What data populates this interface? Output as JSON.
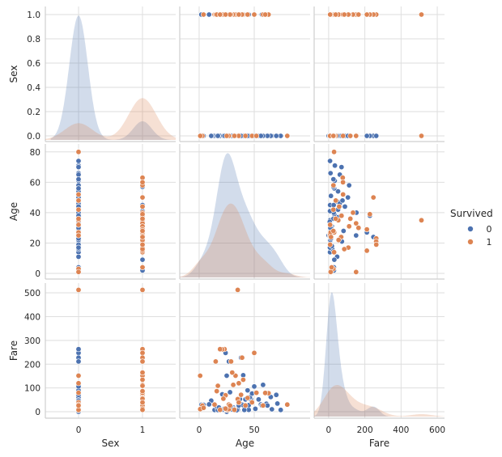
{
  "chart_data": {
    "type": "scatter",
    "subtype": "pairplot",
    "variables": [
      "Sex",
      "Age",
      "Fare"
    ],
    "hue": "Survived",
    "legend": {
      "title": "Survived",
      "entries": [
        "0",
        "1"
      ],
      "placement": "right"
    },
    "colors": {
      "0": "#4c72b0",
      "1": "#dd8452"
    },
    "grid": true,
    "diagonal": "kde",
    "axes": [
      {
        "name": "Sex",
        "lim": [
          -0.52,
          1.52
        ],
        "ylim": [
          -0.047,
          1.067
        ],
        "xticks": [
          "0",
          "1"
        ],
        "xtick_values": [
          0,
          1
        ],
        "yticks": [
          "0.0",
          "0.2",
          "0.4",
          "0.6",
          "0.8",
          "1.0"
        ],
        "ytick_values": [
          0,
          0.2,
          0.4,
          0.6,
          0.8,
          1.0
        ]
      },
      {
        "name": "Age",
        "lim": [
          -17.6,
          100.7
        ],
        "ylim": [
          -3.7,
          85.2
        ],
        "xticks": [
          "0",
          "50"
        ],
        "xtick_values": [
          0,
          50
        ],
        "yticks": [
          "0",
          "20",
          "40",
          "60",
          "80"
        ],
        "ytick_values": [
          0,
          20,
          40,
          60,
          80
        ]
      },
      {
        "name": "Fare",
        "lim": [
          -80,
          640
        ],
        "ylim": [
          -27,
          541
        ],
        "xticks": [
          "0",
          "200",
          "400",
          "600"
        ],
        "xtick_values": [
          0,
          200,
          400,
          600
        ],
        "yticks": [
          "0",
          "100",
          "200",
          "300",
          "400",
          "500"
        ],
        "ytick_values": [
          0,
          100,
          200,
          300,
          400,
          500
        ]
      }
    ],
    "columns": [
      "Sex",
      "Age",
      "Fare",
      "Survived"
    ],
    "points": [
      [
        0,
        22,
        7.25,
        0
      ],
      [
        0,
        35,
        8.05,
        0
      ],
      [
        0,
        54,
        51.86,
        0
      ],
      [
        0,
        2,
        21.08,
        0
      ],
      [
        0,
        20,
        8.05,
        0
      ],
      [
        0,
        39,
        31.28,
        0
      ],
      [
        0,
        14,
        7.85,
        0
      ],
      [
        0,
        28,
        13,
        0
      ],
      [
        0,
        31,
        18,
        0
      ],
      [
        0,
        19,
        263,
        0
      ],
      [
        0,
        40,
        27.72,
        0
      ],
      [
        0,
        66,
        10.5,
        0
      ],
      [
        0,
        28,
        82.17,
        0
      ],
      [
        0,
        42,
        52,
        0
      ],
      [
        0,
        21,
        8.05,
        0
      ],
      [
        0,
        18,
        11.5,
        0
      ],
      [
        0,
        45,
        8.05,
        0
      ],
      [
        0,
        25,
        0,
        0
      ],
      [
        0,
        65,
        61.98,
        0
      ],
      [
        0,
        28,
        7.9,
        0
      ],
      [
        0,
        24,
        247.52,
        0
      ],
      [
        0,
        71,
        34.65,
        0
      ],
      [
        0,
        47,
        52,
        0
      ],
      [
        0,
        61,
        33.5,
        0
      ],
      [
        0,
        21,
        73.5,
        0
      ],
      [
        0,
        33,
        7.9,
        0
      ],
      [
        0,
        37,
        53.1,
        0
      ],
      [
        0,
        19,
        263,
        0
      ],
      [
        0,
        36,
        26.29,
        0
      ],
      [
        0,
        46,
        61.18,
        0
      ],
      [
        0,
        22,
        7.23,
        0
      ],
      [
        0,
        51,
        12.53,
        0
      ],
      [
        0,
        16,
        20.21,
        0
      ],
      [
        0,
        29,
        9.5,
        0
      ],
      [
        0,
        40,
        153.46,
        0
      ],
      [
        0,
        30,
        14.5,
        0
      ],
      [
        0,
        48,
        76.73,
        0
      ],
      [
        0,
        62,
        26.55,
        0
      ],
      [
        0,
        74,
        7.78,
        0
      ],
      [
        0,
        58,
        113.28,
        0
      ],
      [
        0,
        44,
        90,
        0
      ],
      [
        0,
        23,
        10.5,
        0
      ],
      [
        0,
        34,
        6.5,
        0
      ],
      [
        0,
        26,
        7.9,
        0
      ],
      [
        0,
        70,
        71,
        0
      ],
      [
        0,
        56,
        30.7,
        0
      ],
      [
        0,
        11,
        46.9,
        0
      ],
      [
        0,
        4,
        29.1,
        0
      ],
      [
        0,
        38,
        227.53,
        0
      ],
      [
        0,
        27,
        211.34,
        0
      ],
      [
        0,
        50,
        106.43,
        0
      ],
      [
        0,
        17,
        7.05,
        0
      ],
      [
        0,
        24,
        8.05,
        0
      ],
      [
        0,
        27,
        7.9,
        0
      ],
      [
        0,
        22,
        9.5,
        0
      ],
      [
        0,
        26,
        7.75,
        0
      ],
      [
        0,
        30,
        8.66,
        0
      ],
      [
        0,
        25,
        7.9,
        0
      ],
      [
        0,
        32,
        10.5,
        0
      ],
      [
        0,
        23,
        13,
        0
      ],
      [
        1,
        26,
        7.93,
        0
      ],
      [
        1,
        18,
        17.8,
        0
      ],
      [
        1,
        45,
        27.9,
        0
      ],
      [
        1,
        2,
        29.1,
        0
      ],
      [
        1,
        9,
        31.28,
        0
      ],
      [
        1,
        30,
        9.35,
        0
      ],
      [
        1,
        25,
        151.55,
        0
      ],
      [
        1,
        41,
        7.85,
        0
      ],
      [
        1,
        57,
        26.55,
        0
      ],
      [
        0,
        35,
        512.33,
        1
      ],
      [
        0,
        80,
        30,
        1
      ],
      [
        0,
        0.92,
        151.55,
        1
      ],
      [
        0,
        3,
        26,
        1
      ],
      [
        0,
        36,
        120,
        1
      ],
      [
        0,
        48,
        39.6,
        1
      ],
      [
        0,
        27,
        30.5,
        1
      ],
      [
        0,
        32,
        8.05,
        1
      ],
      [
        0,
        1,
        11.13,
        1
      ],
      [
        0,
        52,
        79.65,
        1
      ],
      [
        0,
        25,
        7.78,
        1
      ],
      [
        0,
        42,
        26.29,
        1
      ],
      [
        1,
        38,
        71.28,
        1
      ],
      [
        1,
        26,
        7.93,
        1
      ],
      [
        1,
        35,
        53.1,
        1
      ],
      [
        1,
        27,
        11.13,
        1
      ],
      [
        1,
        14,
        30.07,
        1
      ],
      [
        1,
        4,
        16.7,
        1
      ],
      [
        1,
        58,
        26.55,
        1
      ],
      [
        1,
        35,
        512.33,
        1
      ],
      [
        1,
        23,
        263,
        1
      ],
      [
        1,
        21,
        262.38,
        1
      ],
      [
        1,
        19,
        263,
        1
      ],
      [
        1,
        15,
        211.34,
        1
      ],
      [
        1,
        33,
        151.55,
        1
      ],
      [
        1,
        40,
        134.5,
        1
      ],
      [
        1,
        24,
        69.3,
        1
      ],
      [
        1,
        30,
        164.87,
        1
      ],
      [
        1,
        50,
        247.52,
        1
      ],
      [
        1,
        44,
        57.98,
        1
      ],
      [
        1,
        63,
        77.96,
        1
      ],
      [
        1,
        31,
        113.28,
        1
      ],
      [
        1,
        17,
        108.9,
        1
      ],
      [
        1,
        39,
        227.53,
        1
      ],
      [
        1,
        22,
        55,
        1
      ],
      [
        1,
        29,
        211.34,
        1
      ],
      [
        1,
        60,
        79.2,
        1
      ],
      [
        1,
        16,
        86.5,
        1
      ],
      [
        1,
        28,
        26,
        1
      ],
      [
        1,
        24,
        13,
        1
      ],
      [
        1,
        36,
        39,
        1
      ],
      [
        1,
        19,
        7.88,
        1
      ]
    ]
  }
}
